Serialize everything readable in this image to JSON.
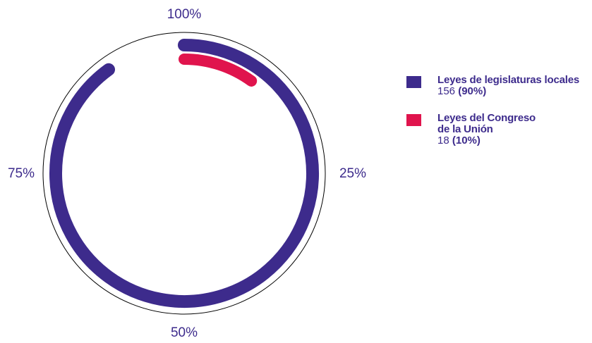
{
  "chart_data": {
    "type": "radial-bar",
    "title": "",
    "axis_ticks": [
      "100%",
      "25%",
      "50%",
      "75%"
    ],
    "axis_range": [
      0,
      100
    ],
    "series": [
      {
        "name": "Leyes de legislaturas locales",
        "value": 156,
        "percent_label": "(90%)",
        "percent": 90,
        "color": "#3d2b8c"
      },
      {
        "name": "Leyes del Congreso\nde la Unión",
        "value": 18,
        "percent_label": "(10%)",
        "percent": 10,
        "color": "#e0144d"
      }
    ],
    "legend_position": "right"
  }
}
